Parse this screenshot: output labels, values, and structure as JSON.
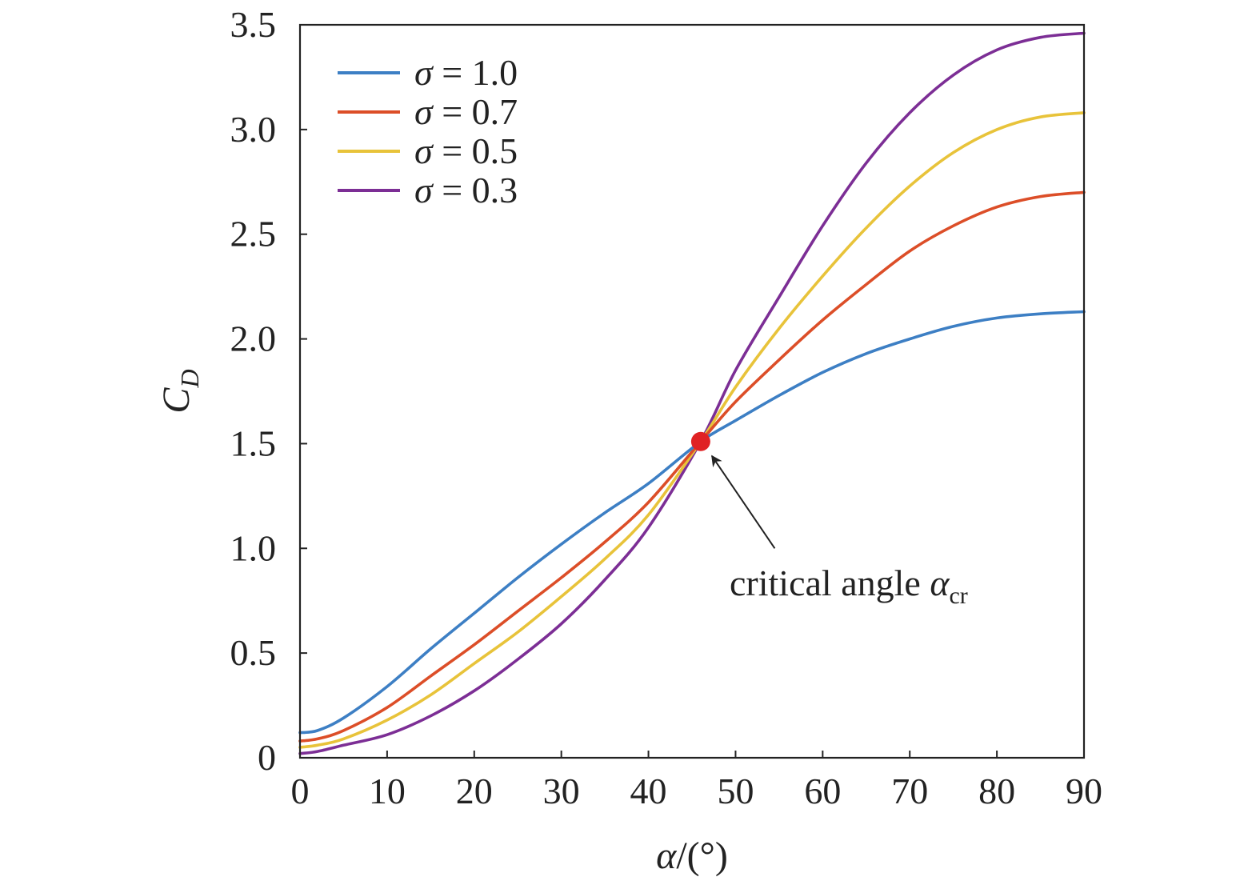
{
  "chart_data": {
    "type": "line",
    "xlabel_var": "α",
    "xlabel_unit": "/(°)",
    "ylabel_main": "C",
    "ylabel_sub": "D",
    "xlim": [
      0,
      90
    ],
    "ylim": [
      0,
      3.5
    ],
    "xticks": [
      0,
      10,
      20,
      30,
      40,
      50,
      60,
      70,
      80,
      90
    ],
    "xtick_labels": [
      "0",
      "10",
      "20",
      "30",
      "40",
      "50",
      "60",
      "70",
      "80",
      "90"
    ],
    "yticks": [
      0,
      0.5,
      1.0,
      1.5,
      2.0,
      2.5,
      3.0,
      3.5
    ],
    "ytick_labels": [
      "0",
      "0.5",
      "1.0",
      "1.5",
      "2.0",
      "2.5",
      "3.0",
      "3.5"
    ],
    "grid": false,
    "legend_position": "top-left",
    "x": [
      0,
      2,
      5,
      10,
      15,
      20,
      25,
      30,
      35,
      40,
      46,
      50,
      55,
      60,
      65,
      70,
      75,
      80,
      85,
      90
    ],
    "series": [
      {
        "name": "σ = 1.0",
        "legend_symbol": "σ",
        "legend_value": "= 1.0",
        "color": "#3d7fc4",
        "values": [
          0.12,
          0.13,
          0.19,
          0.34,
          0.52,
          0.69,
          0.86,
          1.02,
          1.17,
          1.31,
          1.51,
          1.61,
          1.73,
          1.84,
          1.93,
          2.0,
          2.06,
          2.1,
          2.12,
          2.13
        ]
      },
      {
        "name": "σ = 0.7",
        "legend_symbol": "σ",
        "legend_value": "= 0.7",
        "color": "#dc4e28",
        "values": [
          0.08,
          0.09,
          0.13,
          0.24,
          0.39,
          0.54,
          0.7,
          0.86,
          1.03,
          1.22,
          1.51,
          1.7,
          1.9,
          2.09,
          2.26,
          2.42,
          2.54,
          2.63,
          2.68,
          2.7
        ]
      },
      {
        "name": "σ = 0.5",
        "legend_symbol": "σ",
        "legend_value": "= 0.5",
        "color": "#e8c33a",
        "values": [
          0.05,
          0.06,
          0.09,
          0.18,
          0.3,
          0.45,
          0.6,
          0.77,
          0.95,
          1.16,
          1.51,
          1.77,
          2.05,
          2.3,
          2.53,
          2.73,
          2.89,
          3.0,
          3.06,
          3.08
        ]
      },
      {
        "name": "σ = 0.3",
        "legend_symbol": "σ",
        "legend_value": "= 0.3",
        "color": "#7c2e95",
        "values": [
          0.02,
          0.03,
          0.06,
          0.11,
          0.2,
          0.32,
          0.47,
          0.64,
          0.85,
          1.1,
          1.51,
          1.85,
          2.2,
          2.54,
          2.84,
          3.08,
          3.26,
          3.38,
          3.44,
          3.46
        ]
      }
    ],
    "marker": {
      "x": 46,
      "y": 1.51,
      "color": "#e02224"
    },
    "annotation": {
      "text": "critical angle ",
      "symbol": "α",
      "subscript": "cr",
      "text_x": 50,
      "text_y": 0.85,
      "arrow_from_x": 54.5,
      "arrow_from_y": 1.0
    }
  }
}
